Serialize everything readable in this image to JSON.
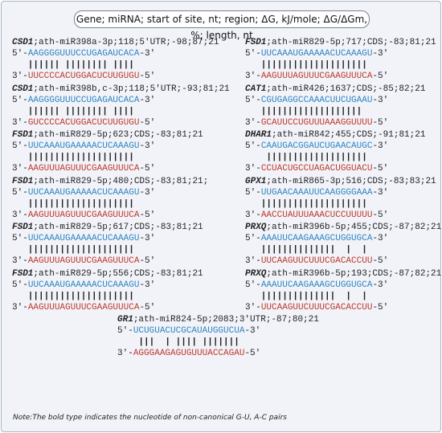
{
  "header": {
    "title": "Gene; miRNA; start of site, nt; region; ΔG, kJ/mole; ΔG/ΔGm, %; length, nt"
  },
  "blocks": [
    {
      "gene": "CSD1",
      "info": ";ath-miR398a-3p;118;5'UTR;-98;87;21",
      "top": {
        "start": "5'-",
        "seq": "AAGGGGUUUCCUGAGAUCACA",
        "end": "-3'"
      },
      "pairs": "|||||| |||||||| ||||",
      "bottom": {
        "start": "3'-",
        "seq": "UUCCCCACUGGACUCUUGUGU",
        "end": "-5'"
      }
    },
    {
      "gene": "CSD1",
      "info": ";ath-miR398b,c-3p;118;5'UTR;-93;81;21",
      "top": {
        "start": "5'-",
        "seq": "AAGGGGUUUCCUGAGAUCACA",
        "end": "-3'"
      },
      "pairs": "|||||| |||||||| ||||",
      "bottom": {
        "start": "3'-",
        "seq": "GUCCCCACUGGACUCUUGUGU",
        "end": "-5'"
      }
    },
    {
      "gene": "FSD1",
      "info": ";ath-miR829-5p;623;CDS;-83;81;21",
      "top": {
        "start": "5'-",
        "seq": "UUCAAAUGAAAAACUCAAAGU",
        "end": "-3'"
      },
      "pairs": "||||||||||||||||||||",
      "bottom": {
        "start": "3'-",
        "seq": "AAGUUUAGUUUCGAAGUUUCA",
        "end": "-5'"
      }
    },
    {
      "gene": "FSD1",
      "info": ";ath-miR829-5p;480;CDS;-83;81;21;",
      "top": {
        "start": "5'-",
        "seq": "UUCAAAUGAAAAACUCAAAGU",
        "end": "-3'"
      },
      "pairs": "||||||||||||||||||||",
      "bottom": {
        "start": "3'-",
        "seq": "AAGUUUAGUUUCGAAGUUUCA",
        "end": "-5'"
      }
    },
    {
      "gene": "FSD1",
      "info": ";ath-miR829-5p;617;CDS;-83;81;21",
      "top": {
        "start": "5'-",
        "seq": "UUCAAAUGAAAAACUCAAAGU",
        "end": "-3'"
      },
      "pairs": "||||||||||||||||||||",
      "bottom": {
        "start": "3'-",
        "seq": "AAGUUUAGUUUCGAAGUUUCA",
        "end": "-5'"
      }
    },
    {
      "gene": "FSD1",
      "info": ";ath-miR829-5p;556;CDS;-83;81;21",
      "top": {
        "start": "5'-",
        "seq": "UUCAAAUGAAAAACUCAAAGU",
        "end": "-3'"
      },
      "pairs": "||||||||||||||||||||",
      "bottom": {
        "start": "3'-",
        "seq": "AAGUUUAGUUUCGAAGUUUCA",
        "end": "-5'"
      }
    },
    {
      "gene": "FSD1",
      "info": ";ath-miR829-5p;717;CDS;-83;81;21",
      "top": {
        "start": "5'-",
        "seq": "UUCAAAUGAAAAACUCAAAGU",
        "end": "-3'"
      },
      "pairs": "||||||||||||||||||||",
      "bottom": {
        "start": "3'-",
        "seq": "AAGUUUAGUUUCGAAGUUUCA",
        "end": "-5'"
      }
    },
    {
      "gene": "CAT1",
      "info": ";ath-miR426;1637;CDS;-85;82;21",
      "top": {
        "start": "5'-",
        "seq": "CGUGAGGCCAAACUUCUGAAU",
        "end": "-3'"
      },
      "pairs": "|||||||||||||||||||",
      "bottom": {
        "start": "3'-",
        "seq": "GCAUUCCUGUUUAAAGGUUUU",
        "end": "-5'"
      }
    },
    {
      "gene": "DHAR1",
      "info": ";ath-miR842;455;CDS;-91;81;21",
      "top": {
        "start": "5'-",
        "seq": "CAAUGACGGAUCUGAACAUGC",
        "end": "-3'"
      },
      "pairs": " |||||||||||||||||||",
      "bottom": {
        "start": "3'-",
        "seq": "CCUACUGCCUAGACUGGUACU",
        "end": "-5'"
      }
    },
    {
      "gene": "GPX1",
      "info": ";ath-miR865-3p;516;CDS;-83;83;21",
      "top": {
        "start": "5'-",
        "seq": "UUGAACAAAUUCAAGGGGAAA",
        "end": "-3'"
      },
      "pairs": "||||||||||||||||||||",
      "bottom": {
        "start": "3'-",
        "seq": "AACCUAUUUAAACUCCUUUUU",
        "end": "-5'"
      }
    },
    {
      "gene": "PRXQ",
      "info": ";ath-miR396b-5p;455;CDS;-87;82;21",
      "top": {
        "start": "5'-",
        "seq": "AAAUUCAAGAAAGCUGGUGCA",
        "end": "-3'"
      },
      "pairs": "||||||||||||||  |  |",
      "bottom": {
        "start": "3'-",
        "seq": "UUCAAGUUCUUUCGACACCUU",
        "end": "-5'"
      }
    },
    {
      "gene": "PRXQ",
      "info": ";ath-miR396b-5p;193;CDS;-87;82;21",
      "top": {
        "start": "5'-",
        "seq": "AAAUUCAAGAAAGCUGGUGCA",
        "end": "-3'"
      },
      "pairs": "||||||||||||||  |  |",
      "bottom": {
        "start": "3'-",
        "seq": "UUCAAGUUCUUUCGACACCUU",
        "end": "-5'"
      }
    },
    {
      "gene": "GR1",
      "info": ";ath-miR824-5p;2083;3'UTR;-87;80;21",
      "top": {
        "start": "5'-",
        "seq": "UCUGUACUCGCAUAUGGUCUA",
        "end": "-3'"
      },
      "pairs": " |||  | |||| |||||||",
      "bottom": {
        "start": "3'-",
        "seq": "AGGGAAGAGUGUUUACCAGAU",
        "end": "-5'"
      }
    }
  ],
  "note": "Note:The bold type indicates the nucleotide of non-canonical G-U, A-C pairs"
}
